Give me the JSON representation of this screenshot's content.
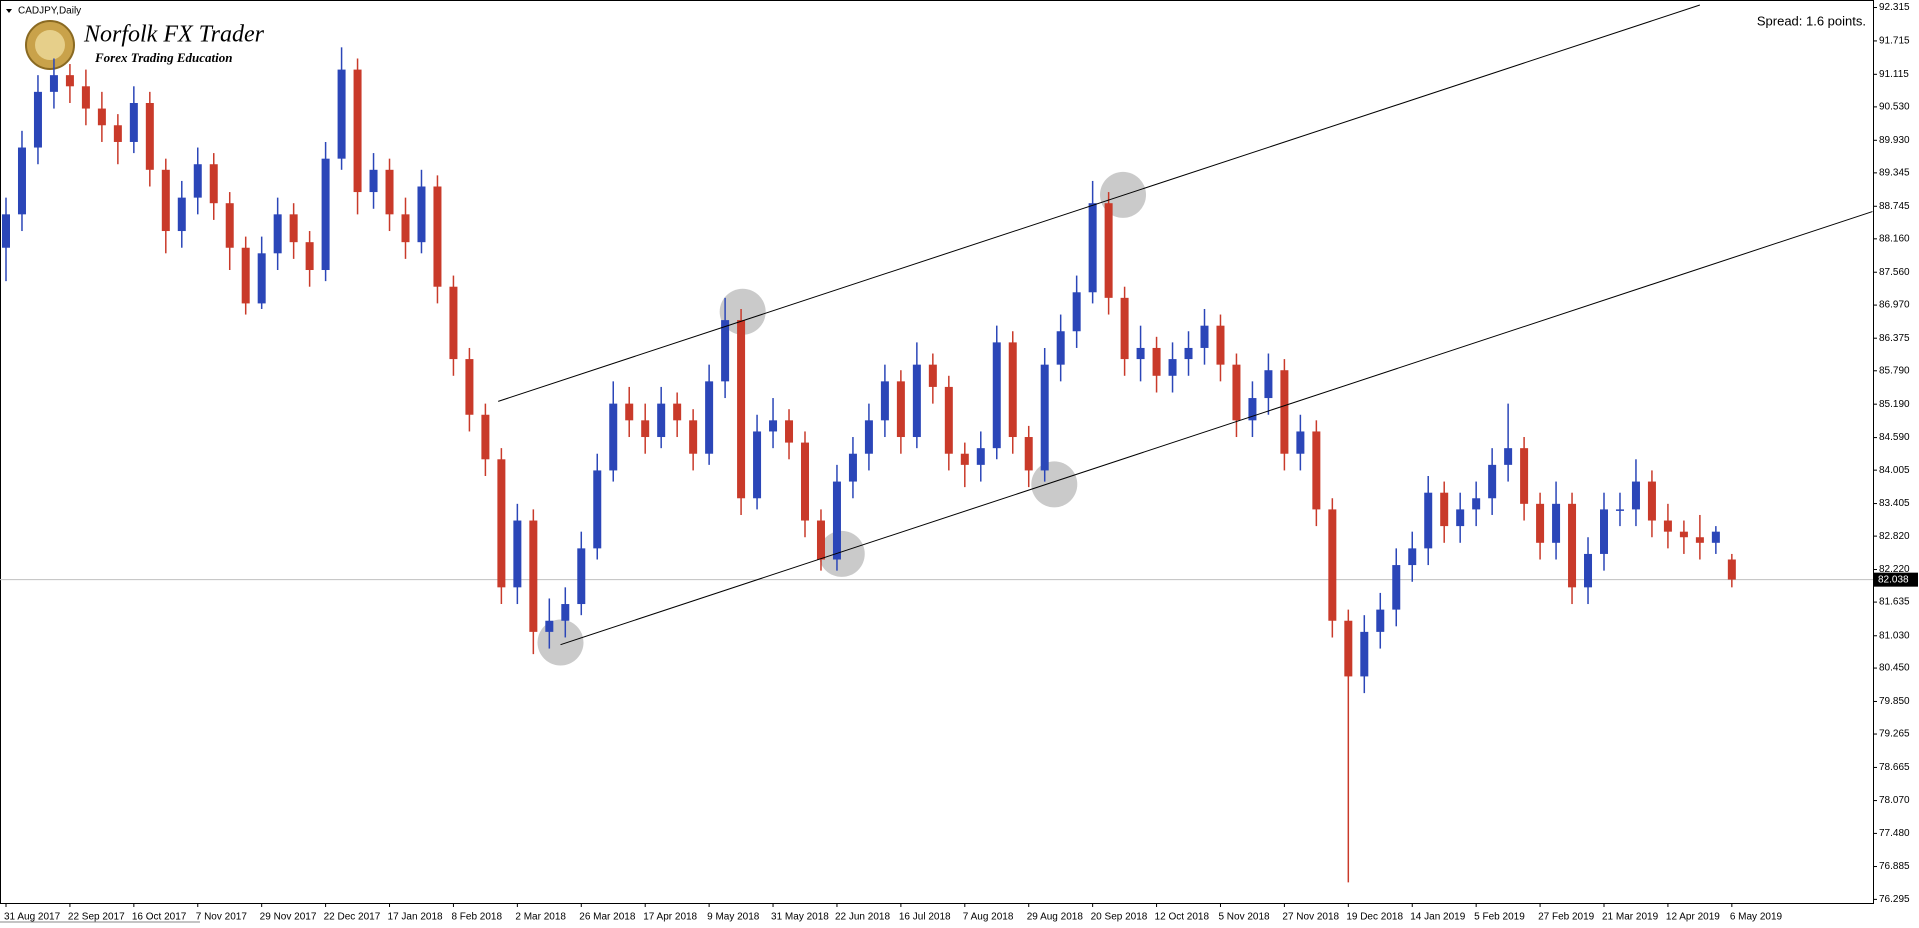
{
  "chart_data": {
    "type": "candlestick",
    "title": "CADJPY,Daily",
    "logo_title": "Norfolk FX Trader",
    "logo_subtitle": "Forex Trading Education",
    "spread_text": "Spread: 1.6 points.",
    "colors": {
      "up": "#2b46b8",
      "down": "#c93a2a"
    },
    "categories": [
      "31 Aug 2017",
      null,
      null,
      null,
      "22 Sep 2017",
      null,
      null,
      null,
      "16 Oct 2017",
      null,
      null,
      null,
      "7 Nov 2017",
      null,
      null,
      null,
      "29 Nov 2017",
      null,
      null,
      null,
      "22 Dec 2017",
      null,
      null,
      null,
      "17 Jan 2018",
      null,
      null,
      null,
      "8 Feb 2018",
      null,
      null,
      null,
      "2 Mar 2018",
      null,
      null,
      null,
      "26 Mar 2018",
      null,
      null,
      null,
      "17 Apr 2018",
      null,
      null,
      null,
      "9 May 2018",
      null,
      null,
      null,
      "31 May 2018",
      null,
      null,
      null,
      "22 Jun 2018",
      null,
      null,
      null,
      "16 Jul 2018",
      null,
      null,
      null,
      "7 Aug 2018",
      null,
      null,
      null,
      "29 Aug 2018",
      null,
      null,
      null,
      "20 Sep 2018",
      null,
      null,
      null,
      "12 Oct 2018",
      null,
      null,
      null,
      "5 Nov 2018",
      null,
      null,
      null,
      "27 Nov 2018",
      null,
      null,
      null,
      "19 Dec 2018",
      null,
      null,
      null,
      "14 Jan 2019",
      null,
      null,
      null,
      "5 Feb 2019",
      null,
      null,
      null,
      "27 Feb 2019",
      null,
      null,
      null,
      "21 Mar 2019",
      null,
      null,
      null,
      "12 Apr 2019",
      null,
      null,
      null,
      "6 May 2019"
    ],
    "ohlc": [
      [
        88.0,
        88.9,
        87.4,
        88.6
      ],
      [
        88.6,
        90.1,
        88.3,
        89.8
      ],
      [
        89.8,
        91.1,
        89.5,
        90.8
      ],
      [
        90.8,
        91.4,
        90.5,
        91.1
      ],
      [
        91.1,
        91.3,
        90.6,
        90.9
      ],
      [
        90.9,
        91.2,
        90.2,
        90.5
      ],
      [
        90.5,
        90.8,
        89.9,
        90.2
      ],
      [
        90.2,
        90.4,
        89.5,
        89.9
      ],
      [
        89.9,
        90.9,
        89.7,
        90.6
      ],
      [
        90.6,
        90.8,
        89.1,
        89.4
      ],
      [
        89.4,
        89.6,
        87.9,
        88.3
      ],
      [
        88.3,
        89.2,
        88.0,
        88.9
      ],
      [
        88.9,
        89.8,
        88.6,
        89.5
      ],
      [
        89.5,
        89.7,
        88.5,
        88.8
      ],
      [
        88.8,
        89.0,
        87.6,
        88.0
      ],
      [
        88.0,
        88.2,
        86.8,
        87.0
      ],
      [
        87.0,
        88.2,
        86.9,
        87.9
      ],
      [
        87.9,
        88.9,
        87.6,
        88.6
      ],
      [
        88.6,
        88.8,
        87.8,
        88.1
      ],
      [
        88.1,
        88.3,
        87.3,
        87.6
      ],
      [
        87.6,
        89.9,
        87.4,
        89.6
      ],
      [
        89.6,
        91.6,
        89.4,
        91.2
      ],
      [
        91.2,
        91.4,
        88.6,
        89.0
      ],
      [
        89.0,
        89.7,
        88.7,
        89.4
      ],
      [
        89.4,
        89.6,
        88.3,
        88.6
      ],
      [
        88.6,
        88.9,
        87.8,
        88.1
      ],
      [
        88.1,
        89.4,
        87.9,
        89.1
      ],
      [
        89.1,
        89.3,
        87.0,
        87.3
      ],
      [
        87.3,
        87.5,
        85.7,
        86.0
      ],
      [
        86.0,
        86.2,
        84.7,
        85.0
      ],
      [
        85.0,
        85.2,
        83.9,
        84.2
      ],
      [
        84.2,
        84.4,
        81.6,
        81.9
      ],
      [
        81.9,
        83.4,
        81.6,
        83.1
      ],
      [
        83.1,
        83.3,
        80.7,
        81.1
      ],
      [
        81.1,
        81.7,
        80.8,
        81.3
      ],
      [
        81.3,
        81.9,
        81.0,
        81.6
      ],
      [
        81.6,
        82.9,
        81.4,
        82.6
      ],
      [
        82.6,
        84.3,
        82.4,
        84.0
      ],
      [
        84.0,
        85.6,
        83.8,
        85.2
      ],
      [
        85.2,
        85.5,
        84.6,
        84.9
      ],
      [
        84.9,
        85.2,
        84.3,
        84.6
      ],
      [
        84.6,
        85.5,
        84.4,
        85.2
      ],
      [
        85.2,
        85.4,
        84.6,
        84.9
      ],
      [
        84.9,
        85.1,
        84.0,
        84.3
      ],
      [
        84.3,
        85.9,
        84.1,
        85.6
      ],
      [
        85.6,
        87.1,
        85.3,
        86.7
      ],
      [
        86.7,
        86.9,
        83.2,
        83.5
      ],
      [
        83.5,
        85.0,
        83.3,
        84.7
      ],
      [
        84.7,
        85.3,
        84.4,
        84.9
      ],
      [
        84.9,
        85.1,
        84.2,
        84.5
      ],
      [
        84.5,
        84.7,
        82.8,
        83.1
      ],
      [
        83.1,
        83.3,
        82.2,
        82.4
      ],
      [
        82.4,
        84.1,
        82.2,
        83.8
      ],
      [
        83.8,
        84.6,
        83.5,
        84.3
      ],
      [
        84.3,
        85.2,
        84.0,
        84.9
      ],
      [
        84.9,
        85.9,
        84.6,
        85.6
      ],
      [
        85.6,
        85.8,
        84.3,
        84.6
      ],
      [
        84.6,
        86.3,
        84.4,
        85.9
      ],
      [
        85.9,
        86.1,
        85.2,
        85.5
      ],
      [
        85.5,
        85.7,
        84.0,
        84.3
      ],
      [
        84.3,
        84.5,
        83.7,
        84.1
      ],
      [
        84.1,
        84.7,
        83.8,
        84.4
      ],
      [
        84.4,
        86.6,
        84.2,
        86.3
      ],
      [
        86.3,
        86.5,
        84.3,
        84.6
      ],
      [
        84.6,
        84.8,
        83.7,
        84.0
      ],
      [
        84.0,
        86.2,
        83.8,
        85.9
      ],
      [
        85.9,
        86.8,
        85.6,
        86.5
      ],
      [
        86.5,
        87.5,
        86.2,
        87.2
      ],
      [
        87.2,
        89.2,
        87.0,
        88.8
      ],
      [
        88.8,
        89.0,
        86.8,
        87.1
      ],
      [
        87.1,
        87.3,
        85.7,
        86.0
      ],
      [
        86.0,
        86.6,
        85.6,
        86.2
      ],
      [
        86.2,
        86.4,
        85.4,
        85.7
      ],
      [
        85.7,
        86.3,
        85.4,
        86.0
      ],
      [
        86.0,
        86.5,
        85.7,
        86.2
      ],
      [
        86.2,
        86.9,
        85.9,
        86.6
      ],
      [
        86.6,
        86.8,
        85.6,
        85.9
      ],
      [
        85.9,
        86.1,
        84.6,
        84.9
      ],
      [
        84.9,
        85.6,
        84.6,
        85.3
      ],
      [
        85.3,
        86.1,
        85.0,
        85.8
      ],
      [
        85.8,
        86.0,
        84.0,
        84.3
      ],
      [
        84.3,
        85.0,
        84.0,
        84.7
      ],
      [
        84.7,
        84.9,
        83.0,
        83.3
      ],
      [
        83.3,
        83.5,
        81.0,
        81.3
      ],
      [
        81.3,
        81.5,
        76.6,
        80.3
      ],
      [
        80.3,
        81.4,
        80.0,
        81.1
      ],
      [
        81.1,
        81.8,
        80.8,
        81.5
      ],
      [
        81.5,
        82.6,
        81.2,
        82.3
      ],
      [
        82.3,
        82.9,
        82.0,
        82.6
      ],
      [
        82.6,
        83.9,
        82.3,
        83.6
      ],
      [
        83.6,
        83.8,
        82.7,
        83.0
      ],
      [
        83.0,
        83.6,
        82.7,
        83.3
      ],
      [
        83.3,
        83.8,
        83.0,
        83.5
      ],
      [
        83.5,
        84.4,
        83.2,
        84.1
      ],
      [
        84.1,
        85.2,
        83.8,
        84.4
      ],
      [
        84.4,
        84.6,
        83.1,
        83.4
      ],
      [
        83.4,
        83.6,
        82.4,
        82.7
      ],
      [
        82.7,
        83.8,
        82.4,
        83.4
      ],
      [
        83.4,
        83.6,
        81.6,
        81.9
      ],
      [
        81.9,
        82.8,
        81.6,
        82.5
      ],
      [
        82.5,
        83.6,
        82.2,
        83.3
      ],
      [
        83.3,
        83.6,
        83.0,
        83.3
      ],
      [
        83.3,
        84.2,
        83.0,
        83.8
      ],
      [
        83.8,
        84.0,
        82.8,
        83.1
      ],
      [
        83.1,
        83.4,
        82.6,
        82.9
      ],
      [
        82.9,
        83.1,
        82.5,
        82.8
      ],
      [
        82.8,
        83.2,
        82.4,
        82.7
      ],
      [
        82.7,
        83.0,
        82.5,
        82.9
      ],
      [
        82.4,
        82.5,
        81.9,
        82.04
      ]
    ],
    "current_price": 82.038,
    "trendlines": [
      {
        "x": [
          34.7,
          116.8
        ],
        "y": [
          80.87,
          88.65
        ]
      },
      {
        "x": [
          30.8,
          106
        ],
        "y": [
          85.24,
          92.36
        ]
      }
    ],
    "highlights": [
      {
        "x": 34.7,
        "y": 80.91
      },
      {
        "x": 46.1,
        "y": 86.85
      },
      {
        "x": 52.3,
        "y": 82.5
      },
      {
        "x": 65.6,
        "y": 83.75
      },
      {
        "x": 69.9,
        "y": 88.95
      }
    ],
    "ylim": [
      76.23,
      92.45
    ],
    "yticks": [
      92.315,
      91.715,
      91.115,
      {
        "value": 90.53,
        "label": "90.530"
      },
      {
        "value": 89.93,
        "label": "89.930"
      },
      89.345,
      88.745,
      {
        "value": 88.16,
        "label": "88.160"
      },
      {
        "value": 87.56,
        "label": "87.560"
      },
      {
        "value": 86.97,
        "label": "86.970"
      },
      86.375,
      {
        "value": 85.79,
        "label": "85.790"
      },
      {
        "value": 85.19,
        "label": "85.190"
      },
      {
        "value": 84.59,
        "label": "84.590"
      },
      84.005,
      83.405,
      {
        "value": 82.82,
        "label": "82.820"
      },
      {
        "value": 82.22,
        "label": "82.220"
      },
      81.635,
      {
        "value": 81.03,
        "label": "81.030"
      },
      {
        "value": 80.45,
        "label": "80.450"
      },
      {
        "value": 79.85,
        "label": "79.850"
      },
      79.265,
      78.665,
      {
        "value": 78.07,
        "label": "78.070"
      },
      {
        "value": 77.48,
        "label": "77.480"
      },
      76.885,
      76.295
    ]
  }
}
